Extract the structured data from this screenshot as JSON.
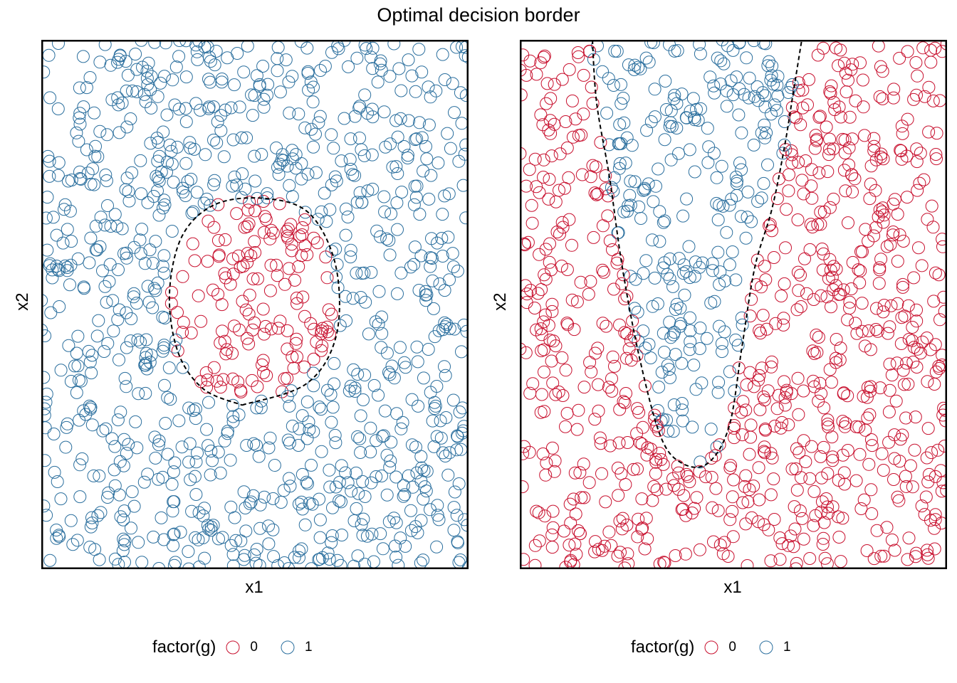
{
  "title": "Optimal decision border",
  "colors": {
    "class0": "#c8102e",
    "class1": "#2b6f9e",
    "boundary": "#000000"
  },
  "chart_data": [
    {
      "type": "scatter",
      "xlabel": "x1",
      "ylabel": "x2",
      "xlim": [
        0,
        1
      ],
      "ylim": [
        0,
        1
      ],
      "legend": {
        "title": "factor(g)",
        "entries": [
          "0",
          "1"
        ],
        "placement": "bottom"
      },
      "series": [
        {
          "name": "0",
          "region": "inside the dashed ellipse"
        },
        {
          "name": "1",
          "region": "outside the dashed ellipse"
        }
      ],
      "decision_boundary": {
        "style": "dashed",
        "points": [
          [
            0.47,
            0.31
          ],
          [
            0.62,
            0.35
          ],
          [
            0.69,
            0.44
          ],
          [
            0.69,
            0.57
          ],
          [
            0.63,
            0.67
          ],
          [
            0.53,
            0.7
          ],
          [
            0.41,
            0.69
          ],
          [
            0.33,
            0.63
          ],
          [
            0.3,
            0.52
          ],
          [
            0.32,
            0.41
          ],
          [
            0.38,
            0.34
          ],
          [
            0.47,
            0.31
          ]
        ]
      },
      "n_points": 1100
    },
    {
      "type": "scatter",
      "xlabel": "x1",
      "ylabel": "x2",
      "xlim": [
        0,
        1
      ],
      "ylim": [
        0,
        1
      ],
      "legend": {
        "title": "factor(g)",
        "entries": [
          "0",
          "1"
        ],
        "placement": "bottom"
      },
      "series": [
        {
          "name": "0",
          "region": "outside the dashed band"
        },
        {
          "name": "1",
          "region": "inside the dashed band"
        }
      ],
      "decision_boundary": {
        "style": "dashed",
        "points": [
          [
            0.17,
            1.0
          ],
          [
            0.18,
            0.88
          ],
          [
            0.21,
            0.74
          ],
          [
            0.24,
            0.57
          ],
          [
            0.28,
            0.4
          ],
          [
            0.33,
            0.25
          ],
          [
            0.38,
            0.2
          ],
          [
            0.44,
            0.2
          ],
          [
            0.49,
            0.27
          ],
          [
            0.52,
            0.42
          ],
          [
            0.55,
            0.57
          ],
          [
            0.59,
            0.68
          ],
          [
            0.62,
            0.8
          ],
          [
            0.64,
            0.9
          ],
          [
            0.66,
            1.0
          ]
        ]
      },
      "n_points": 1100
    }
  ]
}
